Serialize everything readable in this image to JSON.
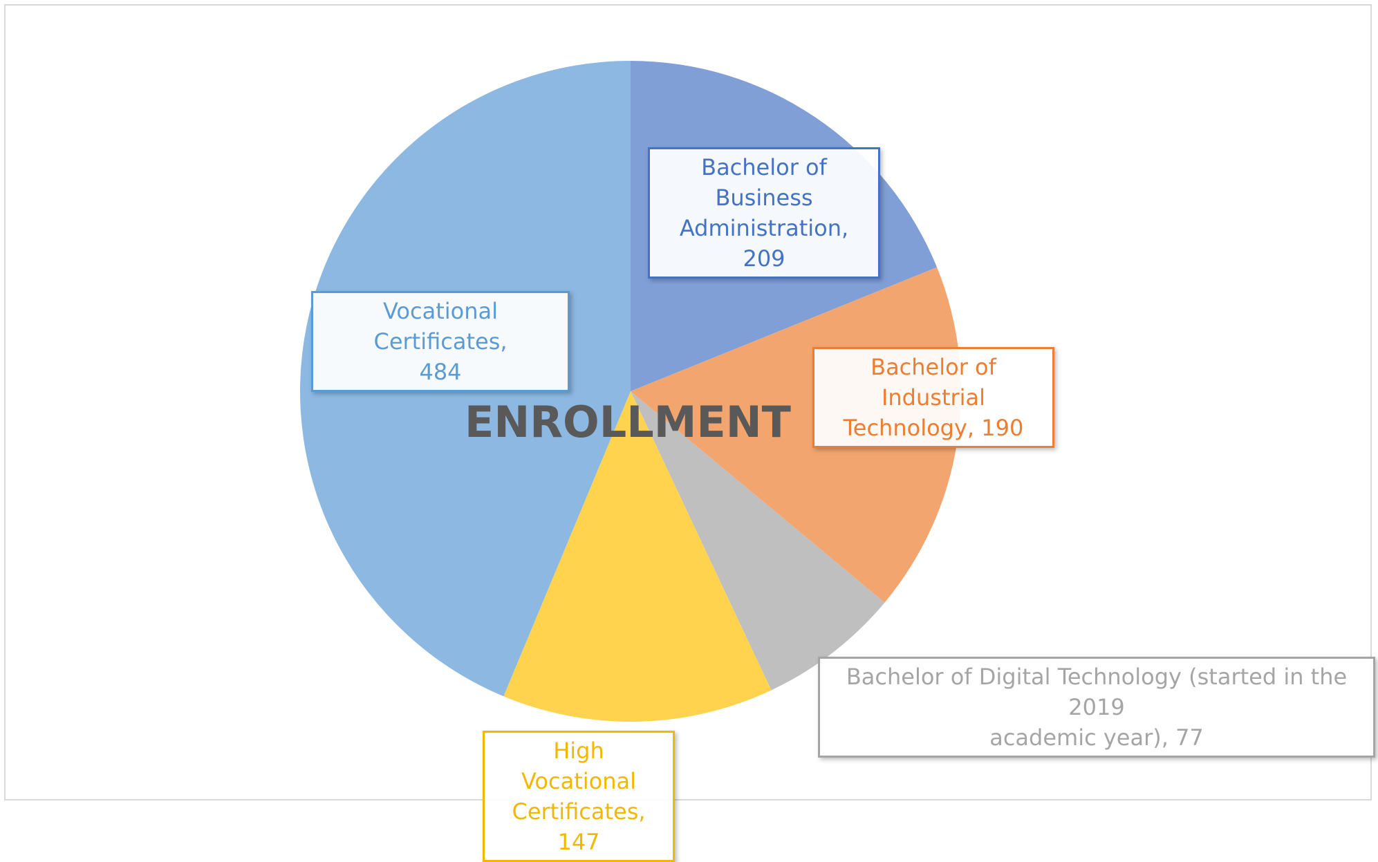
{
  "chart_data": {
    "type": "pie",
    "title": "ENROLLMENT",
    "categories": [
      "Bachelor of Business Administration",
      "Bachelor of Industrial Technology",
      "Bachelor of Digital Technology (started in the 2019 academic year)",
      "High Vocational Certificates",
      "Vocational Certificates"
    ],
    "values": [
      209,
      190,
      77,
      147,
      484
    ],
    "colors": [
      "#7f9fd6",
      "#f2a56e",
      "#bfbfbf",
      "#ffd34d",
      "#8cb8e2"
    ],
    "label_colors": [
      "#4472c4",
      "#ed7d31",
      "#a5a5a5",
      "#f2b800",
      "#5b9bd5"
    ],
    "legend": "none",
    "data_labels": [
      {
        "line1": "Bachelor of Business",
        "line2": "Administration, 209"
      },
      {
        "line1": "Bachelor of Industrial",
        "line2": "Technology, 190"
      },
      {
        "line1": "Bachelor of Digital Technology (started in the 2019",
        "line2": "academic year), 77"
      },
      {
        "line1": "High Vocational",
        "line2": "Certificates, 147"
      },
      {
        "line1": "Vocational Certificates,",
        "line2": "484"
      }
    ]
  }
}
